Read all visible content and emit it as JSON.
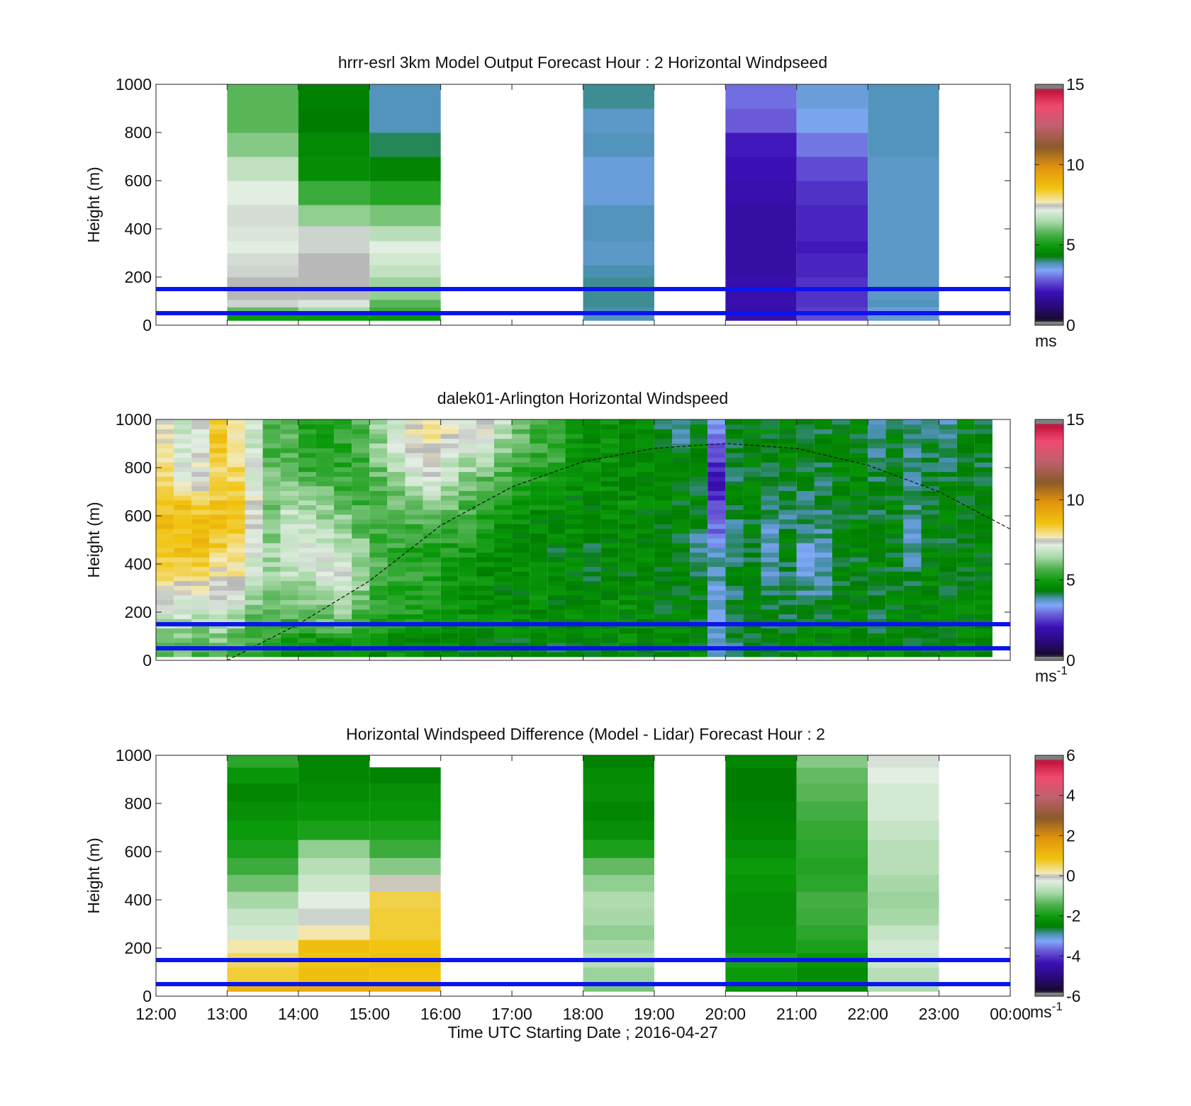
{
  "figure": {
    "xlabel": "Time UTC  Starting Date ; 2016-04-27",
    "x_ticks": [
      "12:00",
      "13:00",
      "14:00",
      "15:00",
      "16:00",
      "17:00",
      "18:00",
      "19:00",
      "20:00",
      "21:00",
      "22:00",
      "23:00",
      "00:00"
    ],
    "y_ticks": [
      "0",
      "200",
      "400",
      "600",
      "800",
      "1000"
    ],
    "ylabel": "Height (m)"
  },
  "chart_data": [
    {
      "type": "heatmap",
      "title": "hrrr-esrl 3km Model Output   Forecast Hour : 2 Horizontal Windpseed",
      "xlabel": "Time UTC  Starting Date ; 2016-04-27",
      "ylabel": "Height (m)",
      "xlim": [
        "12:00",
        "00:00"
      ],
      "ylim": [
        0,
        1000
      ],
      "colorbar": {
        "min": 0,
        "max": 15,
        "ticks": [
          "0",
          "5",
          "10",
          "15"
        ],
        "unit": "ms",
        "unit_sup": ""
      },
      "reference_lines_m": [
        50,
        150
      ],
      "levels_m": [
        37,
        63,
        88,
        125,
        175,
        225,
        275,
        325,
        375,
        450,
        550,
        650,
        750,
        850,
        950
      ],
      "columns": [
        {
          "start_hour": 13,
          "values": [
            5.0,
            6.0,
            7.6,
            7.9,
            7.9,
            7.6,
            7.5,
            7.3,
            7.4,
            7.5,
            7.3,
            6.9,
            6.3,
            5.9,
            5.9
          ]
        },
        {
          "start_hour": 14,
          "values": [
            5.0,
            6.6,
            7.4,
            7.9,
            7.9,
            7.9,
            7.9,
            7.6,
            7.6,
            6.4,
            5.6,
            4.7,
            4.6,
            4.3,
            4.4
          ]
        },
        {
          "start_hour": 15,
          "values": [
            4.9,
            5.6,
            5.9,
            6.4,
            6.5,
            6.9,
            7.1,
            7.3,
            6.8,
            6.2,
            5.3,
            4.5,
            4.0,
            3.6,
            3.6
          ]
        },
        {
          "start_hour": 18,
          "values": [
            3.6,
            3.7,
            3.8,
            3.8,
            3.8,
            3.7,
            3.5,
            3.5,
            3.6,
            3.6,
            3.3,
            3.3,
            3.6,
            3.5,
            3.8
          ]
        },
        {
          "start_hour": 20,
          "values": [
            1.4,
            1.4,
            1.4,
            1.4,
            1.4,
            1.3,
            1.3,
            1.3,
            1.3,
            1.3,
            1.4,
            1.5,
            1.6,
            2.2,
            2.4
          ]
        },
        {
          "start_hour": 21,
          "values": [
            2.0,
            1.9,
            1.8,
            1.8,
            1.8,
            1.7,
            1.7,
            1.6,
            1.7,
            1.7,
            1.8,
            2.0,
            2.5,
            3.1,
            3.3
          ]
        },
        {
          "start_hour": 22,
          "values": [
            3.4,
            3.3,
            3.6,
            3.5,
            3.5,
            3.5,
            3.5,
            3.5,
            3.5,
            3.5,
            3.5,
            3.5,
            3.6,
            3.6,
            3.6
          ]
        }
      ]
    },
    {
      "type": "heatmap",
      "title": "dalek01-Arlington  Horizontal Windspeed",
      "xlabel": "Time UTC  Starting Date ; 2016-04-27",
      "ylabel": "Height (m)",
      "xlim": [
        "12:00",
        "00:00"
      ],
      "ylim": [
        0,
        1000
      ],
      "colorbar": {
        "min": 0,
        "max": 15,
        "ticks": [
          "0",
          "5",
          "10",
          "15"
        ],
        "unit": "ms",
        "unit_sup": "-1"
      },
      "reference_lines_m": [
        50,
        150
      ],
      "bl_curve_m": [
        [
          13.0,
          0
        ],
        [
          14.0,
          150
        ],
        [
          15.0,
          330
        ],
        [
          16.0,
          560
        ],
        [
          17.0,
          720
        ],
        [
          18.0,
          825
        ],
        [
          19.0,
          880
        ],
        [
          20.0,
          900
        ],
        [
          21.0,
          880
        ],
        [
          22.0,
          810
        ],
        [
          23.0,
          700
        ],
        [
          24.0,
          545
        ]
      ],
      "profile_times_h": [
        12.25,
        12.5,
        12.75,
        13.0,
        13.25,
        13.5,
        13.75,
        14.0,
        14.25,
        14.5,
        14.75,
        15.0,
        15.25,
        15.5,
        15.75,
        16.0,
        16.25,
        16.5,
        16.75,
        17.0,
        17.25,
        17.5,
        17.75,
        18.0,
        18.25,
        18.5,
        18.75,
        19.0,
        19.25,
        19.5,
        19.75,
        20.0,
        20.25,
        20.5,
        20.75,
        21.0,
        21.25,
        21.5,
        21.75,
        22.0,
        22.25,
        22.5,
        22.75,
        23.0,
        23.25,
        23.5,
        23.75
      ],
      "profile_levels_m": [
        50,
        150,
        250,
        350,
        450,
        550,
        650,
        750,
        850,
        950
      ],
      "profiles": [
        [
          6.2,
          6.6,
          7.6,
          8.4,
          9.1,
          9.3,
          9.0,
          8.6,
          8.4,
          8.0
        ],
        [
          6.0,
          6.6,
          7.5,
          8.6,
          9.2,
          9.2,
          9.1,
          7.6,
          7.3,
          7.2
        ],
        [
          5.8,
          6.5,
          7.3,
          8.5,
          9.2,
          9.4,
          9.0,
          7.8,
          7.6,
          7.4
        ],
        [
          5.9,
          6.9,
          7.3,
          7.9,
          8.8,
          9.3,
          9.1,
          8.5,
          8.9,
          9.2
        ],
        [
          5.5,
          6.5,
          7.4,
          8.1,
          8.6,
          8.9,
          9.1,
          8.7,
          8.5,
          8.2
        ],
        [
          5.4,
          5.9,
          6.4,
          6.9,
          7.6,
          7.6,
          7.8,
          7.3,
          7.1,
          7.0
        ],
        [
          5.0,
          5.7,
          6.1,
          6.5,
          6.6,
          6.3,
          6.3,
          6.1,
          5.8,
          5.7
        ],
        [
          4.9,
          5.6,
          6.4,
          6.8,
          7.3,
          7.2,
          6.6,
          6.0,
          5.7,
          5.9
        ],
        [
          4.7,
          5.6,
          6.2,
          6.9,
          7.5,
          7.1,
          6.5,
          5.8,
          5.3,
          5.1
        ],
        [
          4.6,
          5.9,
          6.6,
          7.2,
          7.3,
          6.7,
          6.3,
          5.9,
          5.2,
          5.3
        ],
        [
          4.5,
          6.1,
          6.9,
          7.4,
          7.1,
          6.6,
          5.9,
          5.5,
          5.3,
          5.5
        ],
        [
          4.7,
          5.3,
          6.1,
          6.6,
          6.4,
          6.0,
          5.7,
          5.5,
          5.6,
          5.7
        ],
        [
          4.6,
          5.2,
          5.5,
          5.8,
          5.8,
          5.5,
          5.7,
          5.9,
          6.3,
          6.4
        ],
        [
          4.7,
          5.1,
          5.3,
          5.5,
          5.5,
          5.6,
          6.0,
          6.4,
          6.8,
          7.1
        ],
        [
          4.5,
          5.0,
          5.3,
          5.4,
          5.3,
          5.6,
          6.3,
          7.0,
          7.6,
          7.9
        ],
        [
          4.4,
          4.9,
          5.1,
          5.2,
          5.2,
          5.7,
          6.6,
          7.4,
          7.9,
          8.2
        ],
        [
          4.4,
          4.8,
          5.0,
          5.0,
          5.1,
          5.6,
          6.1,
          6.7,
          7.3,
          7.8
        ],
        [
          4.3,
          4.7,
          4.8,
          4.9,
          5.1,
          5.4,
          5.8,
          6.3,
          6.9,
          7.4
        ],
        [
          4.3,
          4.8,
          4.7,
          4.7,
          4.9,
          5.1,
          5.4,
          5.9,
          6.7,
          7.7
        ],
        [
          4.4,
          4.7,
          4.6,
          4.6,
          4.7,
          4.9,
          5.2,
          5.6,
          6.1,
          6.8
        ],
        [
          4.2,
          4.6,
          4.6,
          4.6,
          4.6,
          4.6,
          4.9,
          5.3,
          5.8,
          6.0
        ],
        [
          4.3,
          4.7,
          4.8,
          4.6,
          4.5,
          4.6,
          4.8,
          5.1,
          5.5,
          5.7
        ],
        [
          4.3,
          4.5,
          4.6,
          4.6,
          4.4,
          4.5,
          4.8,
          5.2,
          5.5,
          5.4
        ],
        [
          4.5,
          4.6,
          4.7,
          4.5,
          4.4,
          4.6,
          4.6,
          4.6,
          4.9,
          5.0
        ],
        [
          4.5,
          4.6,
          4.6,
          4.2,
          4.0,
          4.4,
          4.5,
          4.7,
          4.8,
          4.7
        ],
        [
          4.6,
          4.6,
          4.7,
          4.4,
          4.6,
          4.6,
          4.6,
          4.7,
          4.9,
          4.8
        ],
        [
          4.6,
          4.6,
          4.7,
          4.5,
          4.5,
          4.6,
          4.7,
          4.5,
          4.4,
          4.5
        ],
        [
          4.6,
          4.6,
          4.5,
          4.6,
          4.5,
          4.5,
          4.6,
          4.6,
          4.7,
          4.6
        ],
        [
          4.6,
          4.4,
          4.3,
          4.2,
          4.3,
          4.4,
          4.5,
          4.4,
          4.3,
          4.2
        ],
        [
          4.5,
          4.4,
          4.5,
          4.4,
          4.3,
          4.3,
          4.4,
          4.6,
          4.4,
          3.5
        ],
        [
          4.5,
          4.4,
          4.4,
          4.3,
          3.5,
          4.2,
          4.4,
          4.3,
          4.4,
          4.4
        ],
        [
          3.4,
          3.2,
          3.2,
          3.6,
          3.4,
          2.3,
          2.0,
          1.4,
          1.9,
          2.8
        ],
        [
          4.1,
          3.9,
          4.0,
          4.2,
          4.0,
          3.8,
          4.3,
          4.2,
          4.1,
          4.2
        ],
        [
          4.5,
          4.3,
          4.4,
          4.3,
          4.2,
          4.3,
          4.5,
          4.3,
          4.4,
          4.4
        ],
        [
          4.4,
          4.2,
          4.0,
          3.6,
          3.5,
          3.6,
          4.2,
          4.3,
          4.4,
          4.4
        ],
        [
          4.4,
          4.2,
          4.1,
          4.1,
          4.3,
          4.0,
          3.9,
          4.4,
          4.5,
          4.4
        ],
        [
          4.5,
          4.3,
          4.0,
          3.5,
          3.4,
          3.8,
          4.0,
          4.2,
          4.4,
          4.4
        ],
        [
          4.6,
          4.4,
          4.1,
          3.5,
          3.4,
          3.8,
          4.1,
          4.1,
          4.3,
          4.2
        ],
        [
          4.6,
          4.5,
          4.4,
          4.3,
          4.2,
          4.3,
          4.5,
          4.4,
          4.5,
          4.3
        ],
        [
          4.6,
          4.5,
          4.4,
          4.4,
          4.3,
          4.4,
          4.3,
          4.4,
          4.3,
          4.4
        ],
        [
          4.5,
          4.2,
          4.3,
          4.4,
          4.4,
          4.3,
          4.2,
          4.0,
          3.7,
          3.6
        ],
        [
          4.5,
          4.4,
          4.4,
          4.4,
          4.3,
          4.3,
          4.4,
          4.2,
          4.3,
          4.3
        ],
        [
          4.4,
          4.4,
          4.3,
          4.1,
          3.6,
          3.6,
          3.8,
          3.6,
          3.9,
          3.7
        ],
        [
          4.5,
          4.6,
          4.4,
          4.5,
          4.4,
          4.4,
          4.3,
          4.3,
          4.2,
          4.0
        ],
        [
          4.5,
          4.4,
          4.4,
          4.4,
          4.3,
          4.4,
          4.3,
          4.2,
          4.1,
          3.8
        ],
        [
          4.5,
          4.5,
          4.5,
          4.4,
          4.4,
          4.3,
          4.4,
          4.4,
          4.3,
          4.4
        ],
        [
          4.5,
          4.6,
          4.5,
          4.4,
          4.4,
          4.4,
          4.3,
          4.3,
          4.2,
          4.3
        ]
      ]
    },
    {
      "type": "heatmap",
      "title": "Horizontal Windspeed Difference (Model - Lidar) Forecast Hour : 2",
      "xlabel": "Time UTC  Starting Date ; 2016-04-27",
      "ylabel": "Height (m)",
      "xlim": [
        "12:00",
        "00:00"
      ],
      "ylim": [
        0,
        1000
      ],
      "colorbar": {
        "min": -6,
        "max": 6,
        "ticks": [
          "-6",
          "-4",
          "-2",
          "0",
          "2",
          "4",
          "6"
        ],
        "unit": "ms",
        "unit_sup": "-1"
      },
      "reference_lines_m": [
        50,
        150
      ],
      "levels_m": [
        30,
        90,
        150,
        210,
        260,
        330,
        400,
        470,
        540,
        610,
        690,
        770,
        850,
        920,
        980
      ],
      "columns": [
        {
          "start_hour": 13,
          "values": [
            1.6,
            1.0,
            0.8,
            0.4,
            -0.6,
            -0.8,
            -1.2,
            -1.7,
            -2.2,
            -2.6,
            -2.8,
            -3.0,
            -3.2,
            -2.9,
            -2.4
          ]
        },
        {
          "start_hour": 14,
          "values": [
            1.7,
            1.3,
            1.2,
            1.3,
            0.4,
            -0.2,
            -0.4,
            -0.7,
            -1.0,
            -1.4,
            -2.6,
            -2.9,
            -3.1,
            -3.2,
            -3.2
          ]
        },
        {
          "start_hour": 15,
          "values": [
            1.7,
            1.2,
            1.3,
            1.2,
            1.0,
            1.0,
            0.9,
            0.1,
            -1.5,
            -2.2,
            -2.6,
            -2.9,
            -3.0,
            -3.3,
            null
          ]
        },
        {
          "start_hour": 18,
          "values": [
            -1.6,
            -1.3,
            -1.0,
            -1.2,
            -1.4,
            -1.2,
            -1.1,
            -1.4,
            -1.8,
            -2.6,
            -3.0,
            -3.2,
            -3.0,
            -3.1,
            -3.3
          ]
        },
        {
          "start_hour": 20,
          "values": [
            -2.9,
            -2.8,
            -2.6,
            -2.9,
            -2.9,
            -3.0,
            -3.0,
            -2.9,
            -2.8,
            -3.0,
            -3.2,
            -3.3,
            -3.4,
            -3.4,
            -3.2
          ]
        },
        {
          "start_hour": 21,
          "values": [
            -3.2,
            -3.1,
            -2.9,
            -2.6,
            -2.4,
            -2.2,
            -2.1,
            -2.4,
            -2.5,
            -2.4,
            -2.3,
            -2.1,
            -1.9,
            -1.8,
            -1.5
          ]
        },
        {
          "start_hour": 22,
          "values": [
            -1.1,
            -1.0,
            -0.7,
            -0.6,
            -0.8,
            -1.2,
            -1.3,
            -1.2,
            -1.0,
            -1.0,
            -0.8,
            -0.6,
            -0.6,
            -0.4,
            -0.3
          ]
        }
      ]
    }
  ]
}
